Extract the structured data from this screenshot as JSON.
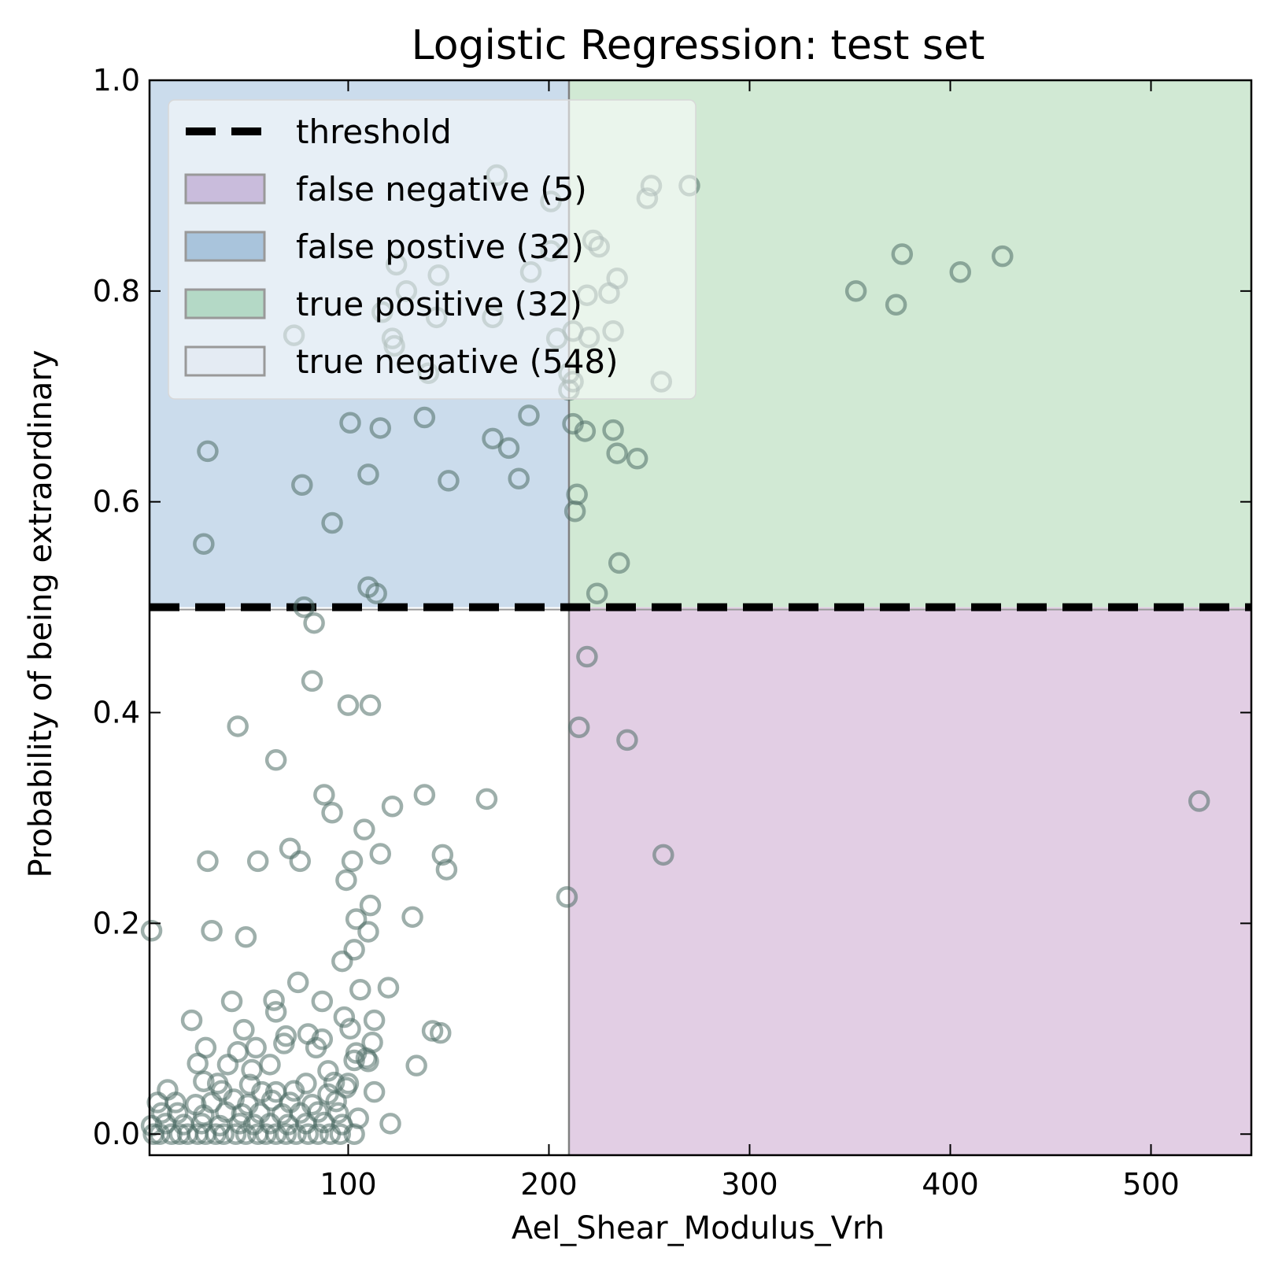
{
  "chart_data": {
    "type": "scatter",
    "title": "Logistic Regression: test set",
    "xlabel": "Ael_Shear_Modulus_Vrh",
    "ylabel": "Probability of being extraordinary",
    "xlim": [
      1,
      550
    ],
    "ylim": [
      -0.02,
      1.0
    ],
    "xticks": [
      100,
      200,
      300,
      400,
      500
    ],
    "xtick_labels": [
      "100",
      "200",
      "300",
      "400",
      "500"
    ],
    "yticks": [
      0.0,
      0.2,
      0.4,
      0.6,
      0.8,
      1.0
    ],
    "ytick_labels": [
      "0.0",
      "0.2",
      "0.4",
      "0.6",
      "0.8",
      "1.0"
    ],
    "threshold_y": 0.5,
    "threshold_x": 210,
    "regions": [
      {
        "name": "false positive",
        "x_range": [
          1,
          210
        ],
        "y_range": [
          0.5,
          1.0
        ],
        "color": "#a9c4e0"
      },
      {
        "name": "true positive",
        "x_range": [
          210,
          550
        ],
        "y_range": [
          0.5,
          1.0
        ],
        "color": "#b2dbb8"
      },
      {
        "name": "false negative",
        "x_range": [
          210,
          550
        ],
        "y_range": [
          -0.02,
          0.5
        ],
        "color": "#cfaed2"
      },
      {
        "name": "true negative",
        "x_range": [
          1,
          210
        ],
        "y_range": [
          -0.02,
          0.5
        ],
        "color": "#ffffff"
      }
    ],
    "legend": {
      "placement": "top-left",
      "entries": [
        {
          "label": "threshold",
          "kind": "line",
          "color": "#000000"
        },
        {
          "label": "false negative (5)",
          "kind": "patch",
          "color": "#c9bcdc"
        },
        {
          "label": "false postive (32)",
          "kind": "patch",
          "color": "#a9c4dc"
        },
        {
          "label": "true positive (32)",
          "kind": "patch",
          "color": "#b4d9c6"
        },
        {
          "label": "true negative (548)",
          "kind": "patch",
          "color": "#e4ebf3"
        }
      ]
    },
    "marker_color": "#4f6d66",
    "points": [
      [
        174,
        0.91
      ],
      [
        201,
        0.885
      ],
      [
        249,
        0.888
      ],
      [
        251,
        0.9
      ],
      [
        270,
        0.9
      ],
      [
        124,
        0.825
      ],
      [
        145,
        0.815
      ],
      [
        191,
        0.818
      ],
      [
        129,
        0.8
      ],
      [
        117,
        0.78
      ],
      [
        144,
        0.775
      ],
      [
        172,
        0.775
      ],
      [
        73,
        0.758
      ],
      [
        122,
        0.755
      ],
      [
        123,
        0.748
      ],
      [
        140,
        0.722
      ],
      [
        204,
        0.755
      ],
      [
        201,
        0.838
      ],
      [
        222,
        0.848
      ],
      [
        225,
        0.842
      ],
      [
        234,
        0.812
      ],
      [
        230,
        0.798
      ],
      [
        219,
        0.796
      ],
      [
        212,
        0.762
      ],
      [
        220,
        0.756
      ],
      [
        232,
        0.762
      ],
      [
        210,
        0.722
      ],
      [
        212,
        0.714
      ],
      [
        210,
        0.706
      ],
      [
        256,
        0.714
      ],
      [
        212,
        0.674
      ],
      [
        218,
        0.667
      ],
      [
        232,
        0.668
      ],
      [
        234,
        0.646
      ],
      [
        244,
        0.641
      ],
      [
        214,
        0.607
      ],
      [
        213,
        0.591
      ],
      [
        235,
        0.542
      ],
      [
        224,
        0.513
      ],
      [
        353,
        0.8
      ],
      [
        373,
        0.787
      ],
      [
        376,
        0.835
      ],
      [
        405,
        0.818
      ],
      [
        426,
        0.833
      ],
      [
        30,
        0.648
      ],
      [
        101,
        0.675
      ],
      [
        116,
        0.67
      ],
      [
        138,
        0.68
      ],
      [
        190,
        0.682
      ],
      [
        172,
        0.66
      ],
      [
        180,
        0.651
      ],
      [
        77,
        0.616
      ],
      [
        110,
        0.626
      ],
      [
        150,
        0.62
      ],
      [
        185,
        0.622
      ],
      [
        92,
        0.58
      ],
      [
        28,
        0.56
      ],
      [
        110,
        0.519
      ],
      [
        114,
        0.513
      ],
      [
        78,
        0.5
      ],
      [
        219,
        0.453
      ],
      [
        215,
        0.386
      ],
      [
        239,
        0.374
      ],
      [
        257,
        0.265
      ],
      [
        524,
        0.316
      ],
      [
        83,
        0.485
      ],
      [
        82,
        0.43
      ],
      [
        100,
        0.407
      ],
      [
        111,
        0.407
      ],
      [
        45,
        0.387
      ],
      [
        64,
        0.355
      ],
      [
        88,
        0.322
      ],
      [
        138,
        0.322
      ],
      [
        169,
        0.318
      ],
      [
        92,
        0.305
      ],
      [
        122,
        0.311
      ],
      [
        108,
        0.289
      ],
      [
        71,
        0.271
      ],
      [
        30,
        0.259
      ],
      [
        55,
        0.259
      ],
      [
        76,
        0.259
      ],
      [
        102,
        0.259
      ],
      [
        116,
        0.266
      ],
      [
        147,
        0.265
      ],
      [
        149,
        0.251
      ],
      [
        99,
        0.241
      ],
      [
        209,
        0.225
      ],
      [
        111,
        0.217
      ],
      [
        104,
        0.204
      ],
      [
        132,
        0.206
      ],
      [
        32,
        0.193
      ],
      [
        110,
        0.192
      ],
      [
        49,
        0.187
      ],
      [
        2,
        0.193
      ],
      [
        103,
        0.175
      ],
      [
        97,
        0.164
      ],
      [
        75,
        0.144
      ],
      [
        120,
        0.139
      ],
      [
        106,
        0.137
      ],
      [
        63,
        0.127
      ],
      [
        42,
        0.126
      ],
      [
        87,
        0.126
      ],
      [
        22,
        0.108
      ],
      [
        113,
        0.108
      ],
      [
        98,
        0.111
      ],
      [
        64,
        0.116
      ],
      [
        48,
        0.099
      ],
      [
        101,
        0.1
      ],
      [
        142,
        0.098
      ],
      [
        146,
        0.096
      ],
      [
        69,
        0.093
      ],
      [
        80,
        0.095
      ],
      [
        87,
        0.09
      ],
      [
        112,
        0.087
      ],
      [
        29,
        0.082
      ],
      [
        54,
        0.082
      ],
      [
        68,
        0.086
      ],
      [
        84,
        0.082
      ],
      [
        45,
        0.078
      ],
      [
        104,
        0.077
      ],
      [
        109,
        0.072
      ],
      [
        103,
        0.07
      ],
      [
        110,
        0.069
      ],
      [
        25,
        0.067
      ],
      [
        40,
        0.066
      ],
      [
        61,
        0.066
      ],
      [
        134,
        0.065
      ],
      [
        52,
        0.061
      ],
      [
        90,
        0.06
      ],
      [
        28,
        0.05
      ],
      [
        35,
        0.048
      ],
      [
        51,
        0.047
      ],
      [
        79,
        0.048
      ],
      [
        93,
        0.049
      ],
      [
        99,
        0.044
      ],
      [
        113,
        0.04
      ],
      [
        10,
        0.042
      ],
      [
        37,
        0.041
      ],
      [
        57,
        0.04
      ],
      [
        64,
        0.04
      ],
      [
        73,
        0.041
      ],
      [
        90,
        0.038
      ],
      [
        100,
        0.048
      ],
      [
        5,
        0.03
      ],
      [
        14,
        0.03
      ],
      [
        24,
        0.028
      ],
      [
        32,
        0.03
      ],
      [
        43,
        0.033
      ],
      [
        50,
        0.028
      ],
      [
        62,
        0.032
      ],
      [
        71,
        0.03
      ],
      [
        82,
        0.028
      ],
      [
        94,
        0.031
      ],
      [
        7,
        0.02
      ],
      [
        15,
        0.02
      ],
      [
        28,
        0.018
      ],
      [
        39,
        0.021
      ],
      [
        47,
        0.019
      ],
      [
        56,
        0.02
      ],
      [
        67,
        0.019
      ],
      [
        76,
        0.02
      ],
      [
        85,
        0.021
      ],
      [
        95,
        0.02
      ],
      [
        105,
        0.015
      ],
      [
        2,
        0.008
      ],
      [
        9,
        0.01
      ],
      [
        18,
        0.009
      ],
      [
        27,
        0.01
      ],
      [
        36,
        0.008
      ],
      [
        46,
        0.01
      ],
      [
        53,
        0.009
      ],
      [
        61,
        0.01
      ],
      [
        70,
        0.009
      ],
      [
        79,
        0.01
      ],
      [
        88,
        0.011
      ],
      [
        97,
        0.009
      ],
      [
        121,
        0.01
      ],
      [
        3,
        0.0
      ],
      [
        6,
        0.0
      ],
      [
        12,
        0.0
      ],
      [
        16,
        0.0
      ],
      [
        20,
        0.0
      ],
      [
        25,
        0.0
      ],
      [
        29,
        0.0
      ],
      [
        34,
        0.0
      ],
      [
        38,
        0.0
      ],
      [
        44,
        0.0
      ],
      [
        49,
        0.0
      ],
      [
        55,
        0.0
      ],
      [
        59,
        0.0
      ],
      [
        64,
        0.0
      ],
      [
        69,
        0.0
      ],
      [
        74,
        0.0
      ],
      [
        80,
        0.0
      ],
      [
        85,
        0.0
      ],
      [
        91,
        0.0
      ],
      [
        96,
        0.0
      ],
      [
        103,
        0.0
      ]
    ]
  }
}
